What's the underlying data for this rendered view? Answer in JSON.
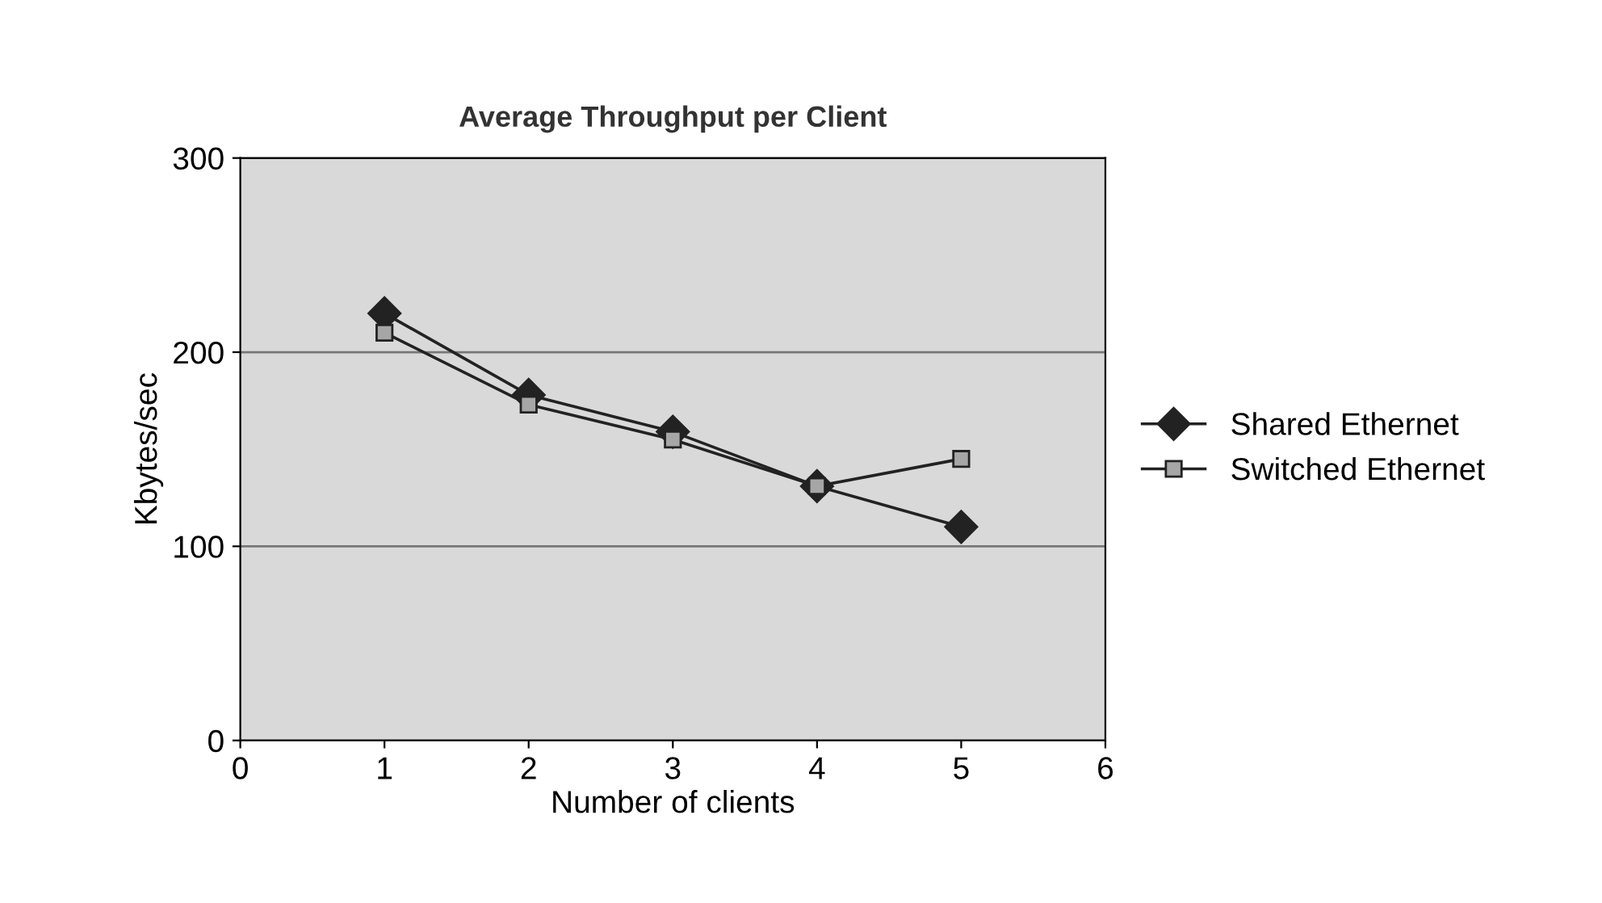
{
  "chart_data": {
    "type": "line",
    "title": "Average Throughput per Client",
    "xlabel": "Number of clients",
    "ylabel": "Kbytes/sec",
    "x": [
      1,
      2,
      3,
      4,
      5
    ],
    "series": [
      {
        "name": "Shared Ethernet",
        "color": "#222222",
        "marker": "diamond",
        "values": [
          220,
          178,
          159,
          131,
          110
        ]
      },
      {
        "name": "Switched Ethernet",
        "color": "#222222",
        "marker": "square",
        "values": [
          210,
          173,
          155,
          131,
          145
        ]
      }
    ],
    "xlim": [
      0,
      6
    ],
    "xticks": [
      0,
      1,
      2,
      3,
      4,
      5,
      6
    ],
    "ylim": [
      0,
      300
    ],
    "yticks": [
      0,
      100,
      200,
      300
    ],
    "grid": "y",
    "legend": "right",
    "line_style": "solid"
  }
}
